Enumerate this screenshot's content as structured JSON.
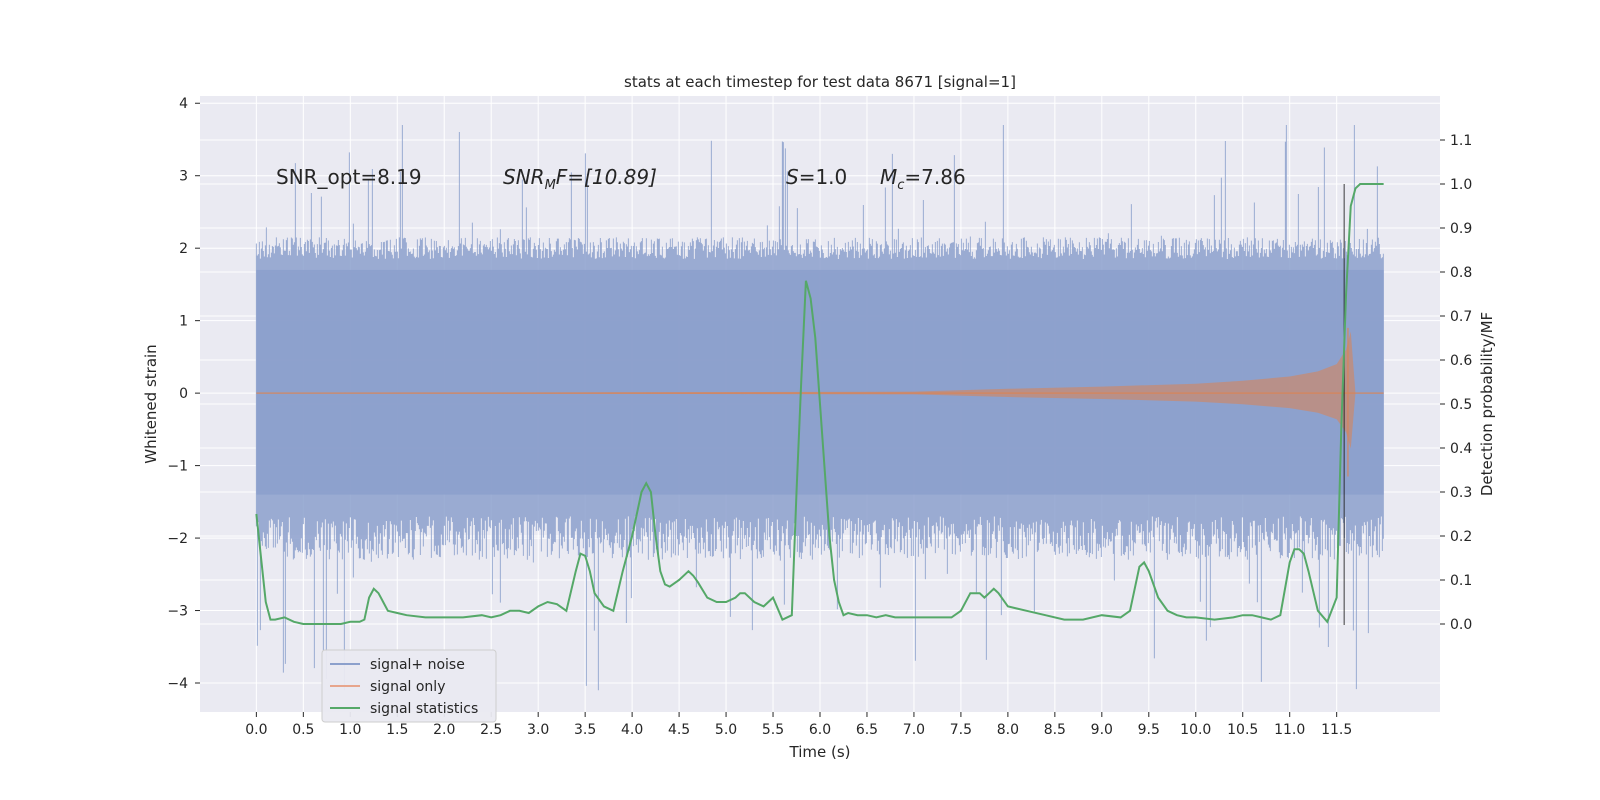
{
  "chart_data": {
    "type": "line",
    "title": "stats at each timestep for test data 8671 [signal=1]",
    "xlabel": "Time (s)",
    "ylabel": "Whitened strain",
    "y2label": "Detection probability/MF",
    "xlim": [
      -0.6,
      12.6
    ],
    "ylim": [
      -4.4,
      4.1
    ],
    "y2lim": [
      -0.2,
      1.2
    ],
    "x_ticks": [
      "0.0",
      "0.5",
      "1.0",
      "1.5",
      "2.0",
      "2.5",
      "3.0",
      "3.5",
      "4.0",
      "4.5",
      "5.0",
      "5.5",
      "6.0",
      "6.5",
      "7.0",
      "7.5",
      "8.0",
      "8.5",
      "9.0",
      "9.5",
      "10.0",
      "10.5",
      "11.0",
      "11.5"
    ],
    "y_ticks": [
      "4",
      "3",
      "2",
      "1",
      "0",
      "−1",
      "−2",
      "−3",
      "−4"
    ],
    "y2_ticks": [
      "1.1",
      "1.0",
      "0.9",
      "0.8",
      "0.7",
      "0.6",
      "0.5",
      "0.4",
      "0.3",
      "0.2",
      "0.1",
      "0.0"
    ],
    "grid": true,
    "legend_placement": "lower-left",
    "annotations": {
      "snr_opt": "SNR_opt=8.19",
      "snr_mf_sym": "SNR",
      "snr_mf_sub": "M",
      "snr_mf_rest": "F=[10.89]",
      "s_sym": "S",
      "s_rest": "=1.0",
      "mc_sym": "M",
      "mc_sub": "c",
      "mc_rest": "=7.86"
    },
    "noise_envelope": {
      "description_values": "approximate upper/lower extent of whitened strain (signal + noise)",
      "x_start": 0.0,
      "x_end": 12.0,
      "typical_upper": 2.0,
      "typical_lower": -2.0,
      "dense_upper": 1.7,
      "dense_lower": -1.4,
      "peak_max": 3.7,
      "peak_min": -4.1
    },
    "signal_only": {
      "x": [
        0.0,
        7.0,
        8.0,
        9.0,
        10.0,
        10.5,
        11.0,
        11.3,
        11.5,
        11.6,
        11.65,
        11.7,
        12.0
      ],
      "amp": [
        0.0,
        0.02,
        0.06,
        0.09,
        0.13,
        0.17,
        0.23,
        0.3,
        0.4,
        0.6,
        0.85,
        0.0,
        0.0
      ],
      "min_spike": -1.15
    },
    "series": [
      {
        "name": "signal statistics",
        "x": [
          0.0,
          0.05,
          0.1,
          0.15,
          0.2,
          0.3,
          0.4,
          0.5,
          0.6,
          0.7,
          0.8,
          0.9,
          1.0,
          1.1,
          1.15,
          1.2,
          1.25,
          1.3,
          1.35,
          1.4,
          1.5,
          1.6,
          1.8,
          2.0,
          2.2,
          2.4,
          2.5,
          2.6,
          2.7,
          2.8,
          2.9,
          3.0,
          3.1,
          3.2,
          3.3,
          3.4,
          3.45,
          3.5,
          3.55,
          3.6,
          3.7,
          3.8,
          3.9,
          4.0,
          4.1,
          4.15,
          4.2,
          4.25,
          4.3,
          4.35,
          4.4,
          4.5,
          4.6,
          4.65,
          4.7,
          4.8,
          4.9,
          5.0,
          5.1,
          5.15,
          5.2,
          5.3,
          5.4,
          5.5,
          5.6,
          5.7,
          5.75,
          5.8,
          5.85,
          5.9,
          5.95,
          6.0,
          6.05,
          6.1,
          6.15,
          6.2,
          6.25,
          6.3,
          6.4,
          6.5,
          6.6,
          6.7,
          6.8,
          7.0,
          7.2,
          7.4,
          7.5,
          7.6,
          7.7,
          7.75,
          7.8,
          7.85,
          7.9,
          8.0,
          8.2,
          8.4,
          8.6,
          8.8,
          9.0,
          9.2,
          9.3,
          9.4,
          9.45,
          9.5,
          9.6,
          9.7,
          9.8,
          9.9,
          10.0,
          10.2,
          10.4,
          10.5,
          10.6,
          10.7,
          10.8,
          10.9,
          11.0,
          11.05,
          11.1,
          11.15,
          11.2,
          11.3,
          11.4,
          11.5,
          11.55,
          11.6,
          11.65,
          11.7,
          11.75,
          11.8,
          11.85,
          11.9,
          12.0
        ],
        "values": [
          0.25,
          0.15,
          0.05,
          0.01,
          0.01,
          0.015,
          0.005,
          0.0,
          0.0,
          0.0,
          0.0,
          0.0,
          0.005,
          0.005,
          0.01,
          0.06,
          0.08,
          0.07,
          0.05,
          0.03,
          0.025,
          0.02,
          0.015,
          0.015,
          0.015,
          0.02,
          0.015,
          0.02,
          0.03,
          0.03,
          0.025,
          0.04,
          0.05,
          0.045,
          0.03,
          0.12,
          0.16,
          0.155,
          0.12,
          0.07,
          0.04,
          0.03,
          0.12,
          0.2,
          0.3,
          0.32,
          0.3,
          0.2,
          0.12,
          0.09,
          0.085,
          0.1,
          0.12,
          0.11,
          0.095,
          0.06,
          0.05,
          0.05,
          0.06,
          0.07,
          0.07,
          0.05,
          0.04,
          0.06,
          0.01,
          0.02,
          0.3,
          0.55,
          0.78,
          0.74,
          0.65,
          0.5,
          0.35,
          0.2,
          0.1,
          0.05,
          0.02,
          0.025,
          0.02,
          0.02,
          0.015,
          0.02,
          0.015,
          0.015,
          0.015,
          0.015,
          0.03,
          0.07,
          0.07,
          0.06,
          0.07,
          0.08,
          0.07,
          0.04,
          0.03,
          0.02,
          0.01,
          0.01,
          0.02,
          0.015,
          0.03,
          0.13,
          0.14,
          0.12,
          0.06,
          0.03,
          0.02,
          0.015,
          0.015,
          0.01,
          0.015,
          0.02,
          0.02,
          0.015,
          0.01,
          0.02,
          0.14,
          0.17,
          0.17,
          0.16,
          0.12,
          0.03,
          0.005,
          0.06,
          0.45,
          0.75,
          0.95,
          0.99,
          1.0,
          1.0,
          1.0,
          1.0,
          1.0
        ]
      }
    ],
    "legend": [
      {
        "name": "signal+ noise",
        "color": "#8da0cb"
      },
      {
        "name": "signal only",
        "color": "#e7a58c"
      },
      {
        "name": "signal statistics",
        "color": "#55a868"
      }
    ]
  },
  "colors": {
    "background": "#eaeaf2",
    "grid": "#ffffff",
    "noise": "#8ca0cc",
    "signal": "#dd8452",
    "stats": "#55a868",
    "dark_line": "#1a1a1a"
  }
}
